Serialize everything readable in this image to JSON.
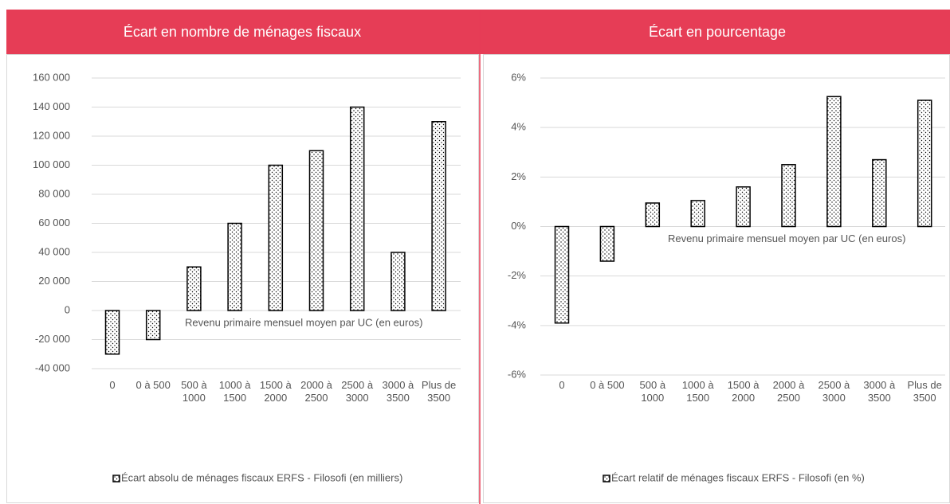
{
  "charts": [
    {
      "type": "bar",
      "title": "Écart en nombre de ménages fiscaux",
      "categories": [
        "0",
        "0 à 500",
        "500 à 1000",
        "1000 à 1500",
        "1500 à 2000",
        "2000 à 2500",
        "2500 à 3000",
        "3000 à 3500",
        "Plus de 3500"
      ],
      "series": [
        {
          "name": "Écart absolu de ménages fiscaux ERFS - Filosofi (en milliers)",
          "color": "#000000",
          "values": [
            -30000,
            -20000,
            30000,
            60000,
            100000,
            110000,
            140000,
            40000,
            130000
          ]
        }
      ],
      "x_label": "Revenu primaire mensuel moyen par UC (en euros)",
      "ylim": [
        -40000,
        160000
      ],
      "yticks": [
        {
          "value": -40000,
          "label": "-40 000"
        },
        {
          "value": -20000,
          "label": "-20 000"
        },
        0,
        {
          "value": 20000,
          "label": "20 000"
        },
        {
          "value": 40000,
          "label": "40 000"
        },
        {
          "value": 60000,
          "label": "60 000"
        },
        {
          "value": 80000,
          "label": "80 000"
        },
        {
          "value": 100000,
          "label": "100 000"
        },
        {
          "value": 120000,
          "label": "120 000"
        },
        {
          "value": 140000,
          "label": "140 000"
        },
        {
          "value": 160000,
          "label": "160 000"
        }
      ],
      "grid": true,
      "legend": "bottom"
    },
    {
      "type": "bar",
      "title": "Écart en pourcentage",
      "categories": [
        "0",
        "0 à 500",
        "500 à 1000",
        "1000 à 1500",
        "1500 à 2000",
        "2000 à 2500",
        "2500 à 3000",
        "3000 à 3500",
        "Plus de 3500"
      ],
      "series": [
        {
          "name": "Écart relatif de ménages fiscaux ERFS - Filosofi (en %)",
          "color": "#000000",
          "values": [
            -3.9,
            -1.4,
            0.95,
            1.05,
            1.6,
            2.5,
            5.25,
            2.7,
            5.1
          ]
        }
      ],
      "x_label": "Revenu primaire mensuel moyen par UC (en euros)",
      "ylim": [
        -6,
        6
      ],
      "yticks": [
        {
          "value": -6,
          "label": "-6%"
        },
        {
          "value": -4,
          "label": "-4%"
        },
        {
          "value": -2,
          "label": "-2%"
        },
        {
          "value": 0,
          "label": "0%"
        },
        {
          "value": 2,
          "label": "2%"
        },
        {
          "value": 4,
          "label": "4%"
        },
        {
          "value": 6,
          "label": "6%"
        }
      ],
      "grid": true,
      "legend": "bottom"
    }
  ]
}
